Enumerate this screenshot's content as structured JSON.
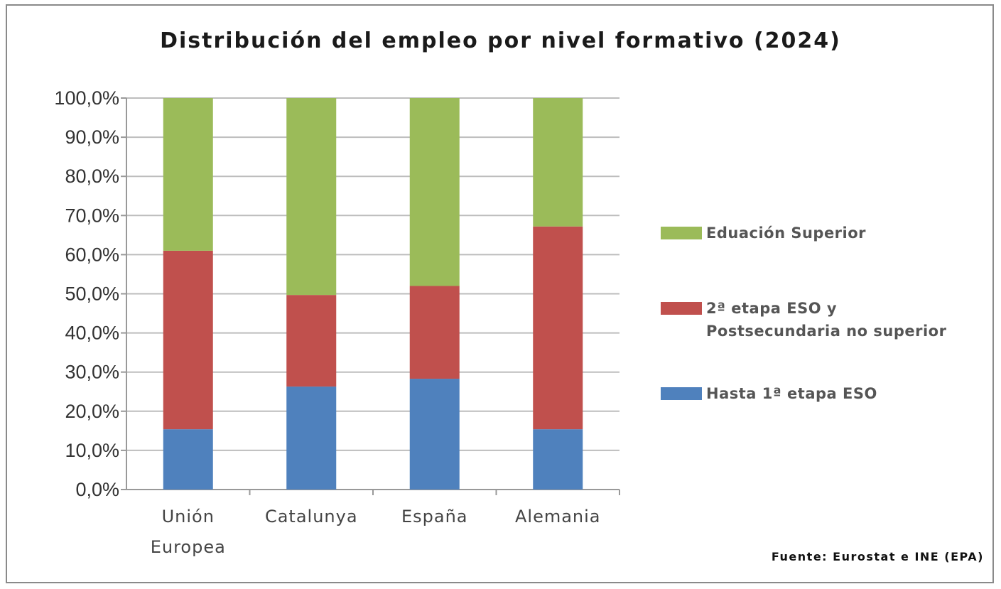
{
  "chart_data": {
    "type": "bar",
    "stacked": true,
    "title": "Distribución del empleo por nivel formativo (2024)",
    "categories": [
      "Unión Europea",
      "Catalunya",
      "España",
      "Alemania"
    ],
    "series": [
      {
        "name": "Hasta 1ª etapa ESO",
        "color": "#4f81bd",
        "values": [
          15.4,
          26.3,
          28.3,
          15.4
        ]
      },
      {
        "name": "2ª etapa ESO y Postsecundaria no superior",
        "color": "#c0504d",
        "values": [
          45.6,
          23.4,
          23.7,
          51.8
        ]
      },
      {
        "name": "Eduación Superior",
        "color": "#9bbb59",
        "values": [
          39.0,
          50.3,
          48.0,
          32.8
        ]
      }
    ],
    "ylim": [
      0,
      100
    ],
    "yticks": [
      "0,0%",
      "10,0%",
      "20,0%",
      "30,0%",
      "40,0%",
      "50,0%",
      "60,0%",
      "70,0%",
      "80,0%",
      "90,0%",
      "100,0%"
    ],
    "grid": true,
    "legend_position": "right",
    "legend": [
      "Eduación Superior",
      "2ª etapa ESO y Postsecundaria no superior",
      "Hasta 1ª etapa ESO"
    ],
    "source": "Fuente: Eurostat e INE (EPA)"
  }
}
